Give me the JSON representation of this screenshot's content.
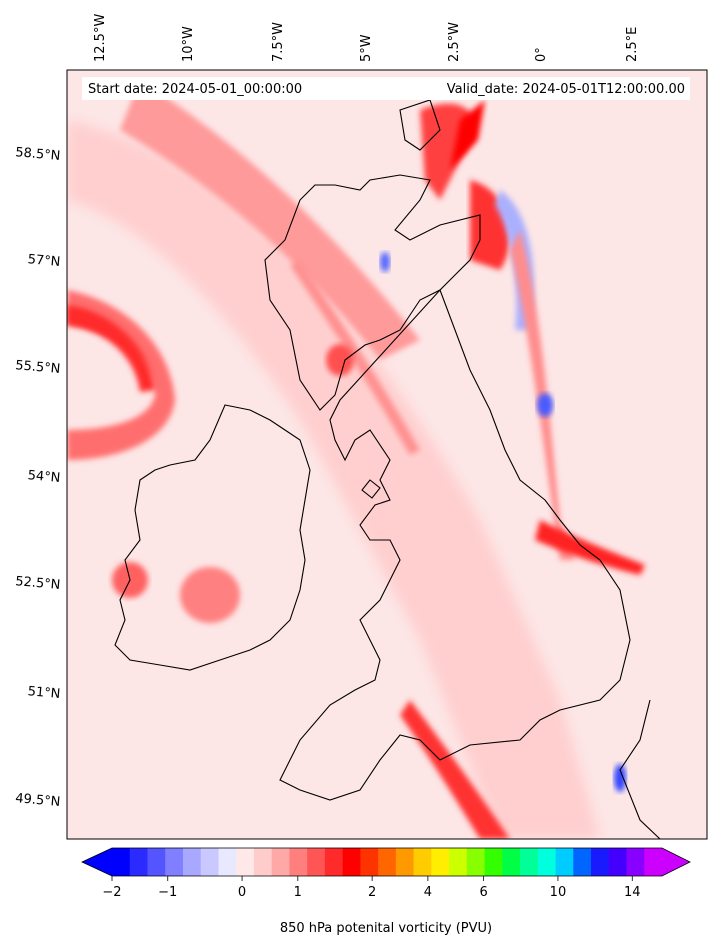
{
  "header": {
    "start_date": "Start date: 2024-05-01_00:00:00",
    "valid_date": "Valid_date: 2024-05-01T12:00:00.00"
  },
  "map": {
    "lon_labels": [
      "12.5°W",
      "10°W",
      "7.5°W",
      "5°W",
      "2.5°W",
      "0°",
      "2.5°E"
    ],
    "lat_labels": [
      "58.5°N",
      "57°N",
      "55.5°N",
      "54°N",
      "52.5°N",
      "51°N",
      "49.5°N"
    ],
    "field": "850 hPa potential vorticity",
    "background_color": "#fde3e3"
  },
  "colorbar": {
    "label": "850 hPa potenital vorticity (PVU)",
    "tick_labels": [
      "−2",
      "−1",
      "0",
      "1",
      "2",
      "4",
      "6",
      "10",
      "14"
    ],
    "colors": [
      "#0000ff",
      "#2b2bff",
      "#5555ff",
      "#7f7fff",
      "#a8a8ff",
      "#c9c9ff",
      "#e8e8ff",
      "#ffe8e8",
      "#ffcccc",
      "#ffa8a8",
      "#ff7f7f",
      "#ff5555",
      "#ff2b2b",
      "#ff0000",
      "#ff3300",
      "#ff6600",
      "#ff9900",
      "#ffcc00",
      "#ffee00",
      "#ccff00",
      "#88ff00",
      "#33ff00",
      "#00ff44",
      "#00ff99",
      "#00ffdd",
      "#00ccff",
      "#0066ff",
      "#1a1aff",
      "#4400ff",
      "#8800ff",
      "#cc00ff"
    ],
    "min_color": "#0000ff",
    "max_color": "#cc00ff"
  }
}
